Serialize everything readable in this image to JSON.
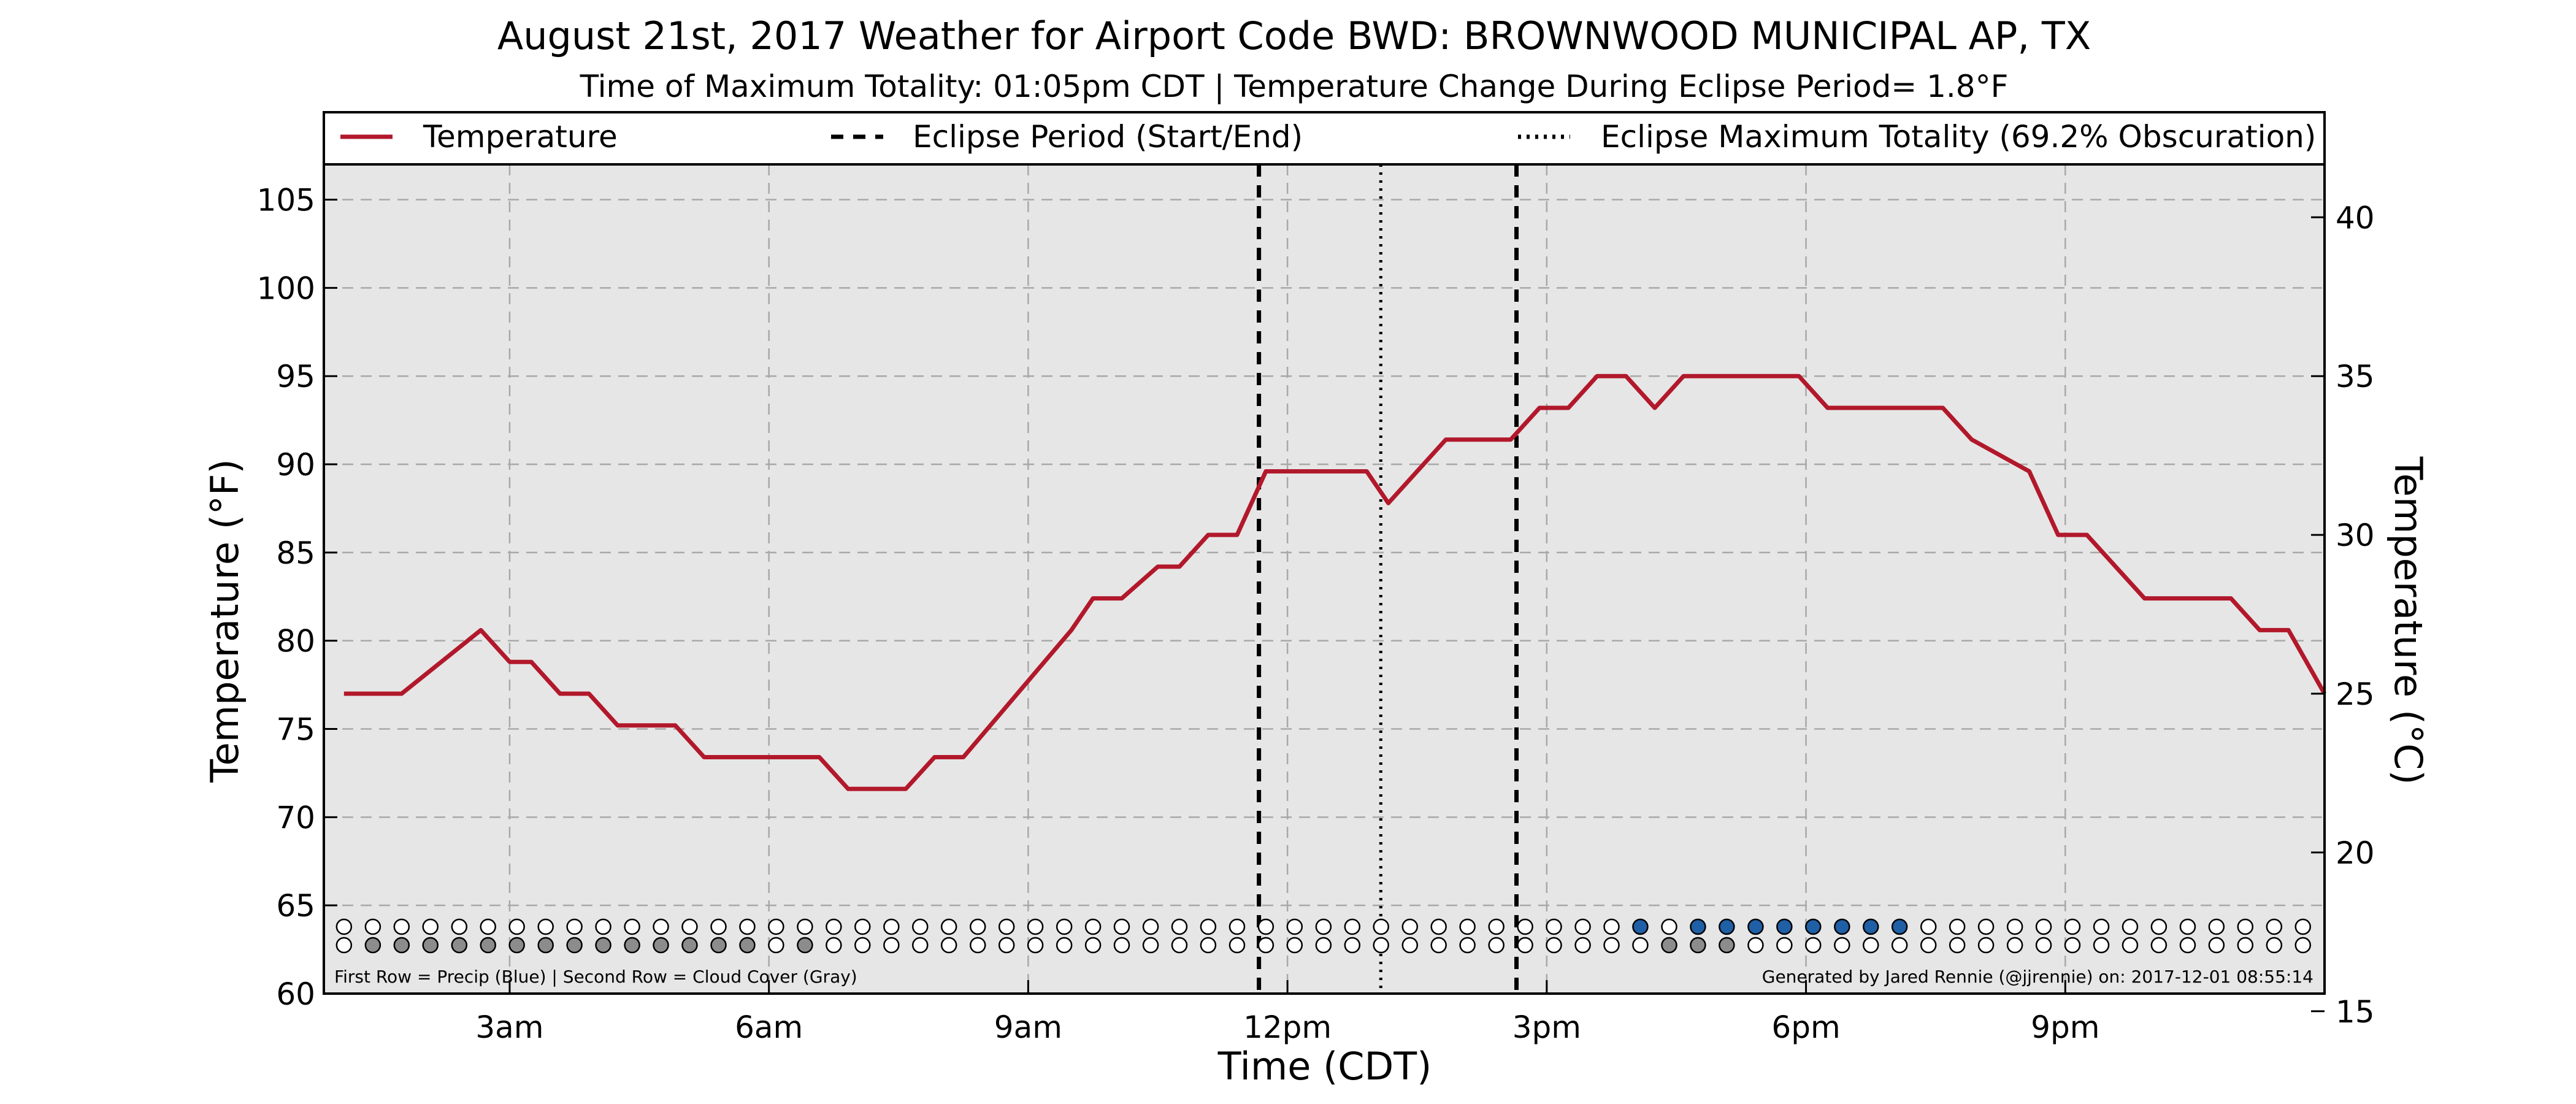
{
  "chart_data": {
    "type": "line",
    "title": "August 21st, 2017 Weather for Airport Code BWD: BROWNWOOD MUNICIPAL AP, TX",
    "subtitle": "Time of Maximum Totality: 01:05pm CDT | Temperature Change During Eclipse Period= 1.8°F",
    "xlabel": "Time (CDT)",
    "ylabel": "Temperature (°F)",
    "ylabel_right": "Temperature (°C)",
    "x_unit": "hours after midnight CDT",
    "xlim": [
      0.85,
      24.0
    ],
    "ylim": [
      60,
      107
    ],
    "ylim_right_c": [
      15.56,
      41.67
    ],
    "x_ticks": [
      {
        "value": 3,
        "label": "3am"
      },
      {
        "value": 6,
        "label": "6am"
      },
      {
        "value": 9,
        "label": "9am"
      },
      {
        "value": 12,
        "label": "12pm"
      },
      {
        "value": 15,
        "label": "3pm"
      },
      {
        "value": 18,
        "label": "6pm"
      },
      {
        "value": 21,
        "label": "9pm"
      }
    ],
    "y_ticks": [
      60,
      65,
      70,
      75,
      80,
      85,
      90,
      95,
      100,
      105
    ],
    "y_ticks_right": [
      15,
      20,
      25,
      30,
      35,
      40
    ],
    "grid": true,
    "legend_position": "top",
    "series": [
      {
        "name": "Temperature",
        "color": "#b2182b",
        "x": [
          1.083,
          1.75,
          2.667,
          3.0,
          3.25,
          3.583,
          3.917,
          4.25,
          4.583,
          4.917,
          5.25,
          5.583,
          6.583,
          6.917,
          7.583,
          7.917,
          8.25,
          9.5,
          9.75,
          10.083,
          10.5,
          10.75,
          11.083,
          11.417,
          11.75,
          12.0,
          12.25,
          12.583,
          12.917,
          13.167,
          13.5,
          13.833,
          14.167,
          14.583,
          14.917,
          15.25,
          15.583,
          15.917,
          16.25,
          16.583,
          16.917,
          17.25,
          17.917,
          18.25,
          18.583,
          18.917,
          19.25,
          19.583,
          19.917,
          20.583,
          20.917,
          21.25,
          21.583,
          21.917,
          22.917,
          23.25,
          23.583,
          24.0
        ],
        "values": [
          77.0,
          77.0,
          80.6,
          78.8,
          78.8,
          77.0,
          77.0,
          75.2,
          75.2,
          75.2,
          73.4,
          73.4,
          73.4,
          71.6,
          71.6,
          73.4,
          73.4,
          80.6,
          82.4,
          82.4,
          84.2,
          84.2,
          86.0,
          86.0,
          89.6,
          89.6,
          89.6,
          89.6,
          89.6,
          87.8,
          89.6,
          91.4,
          91.4,
          91.4,
          93.2,
          93.2,
          95.0,
          95.0,
          93.2,
          95.0,
          95.0,
          95.0,
          95.0,
          93.2,
          93.2,
          93.2,
          93.2,
          93.2,
          91.4,
          89.6,
          86.0,
          86.0,
          84.2,
          82.4,
          82.4,
          80.6,
          80.6,
          77.0
        ]
      }
    ],
    "eclipse_period": {
      "name": "Eclipse Period (Start/End)",
      "start": 11.67,
      "end": 14.65
    },
    "eclipse_max_totality": {
      "name": "Eclipse Maximum Totality (69.2% Obscuration)",
      "time": 13.08
    },
    "observation_times": [
      1.083,
      1.417,
      1.75,
      2.083,
      2.417,
      2.75,
      3.083,
      3.417,
      3.75,
      4.083,
      4.417,
      4.75,
      5.083,
      5.417,
      5.75,
      6.083,
      6.417,
      6.75,
      7.083,
      7.417,
      7.75,
      8.083,
      8.417,
      8.75,
      9.083,
      9.417,
      9.75,
      10.083,
      10.417,
      10.75,
      11.083,
      11.417,
      11.75,
      12.083,
      12.417,
      12.75,
      13.083,
      13.417,
      13.75,
      14.083,
      14.417,
      14.75,
      15.083,
      15.417,
      15.75,
      16.083,
      16.417,
      16.75,
      17.083,
      17.417,
      17.75,
      18.083,
      18.417,
      18.75,
      19.083,
      19.417,
      19.75,
      20.083,
      20.417,
      20.75,
      21.083,
      21.417,
      21.75,
      22.083,
      22.417,
      22.75,
      23.083,
      23.417,
      23.75
    ],
    "precip_observed": [
      0,
      0,
      0,
      0,
      0,
      0,
      0,
      0,
      0,
      0,
      0,
      0,
      0,
      0,
      0,
      0,
      0,
      0,
      0,
      0,
      0,
      0,
      0,
      0,
      0,
      0,
      0,
      0,
      0,
      0,
      0,
      0,
      0,
      0,
      0,
      0,
      0,
      0,
      0,
      0,
      0,
      0,
      0,
      0,
      0,
      1,
      0,
      1,
      1,
      1,
      1,
      1,
      1,
      1,
      1,
      0,
      0,
      0,
      0,
      0,
      0,
      0,
      0,
      0,
      0,
      0,
      0,
      0,
      0
    ],
    "cloud_cover_observed": [
      0,
      1,
      1,
      1,
      1,
      1,
      1,
      1,
      1,
      1,
      1,
      1,
      1,
      1,
      1,
      0,
      1,
      0,
      0,
      0,
      0,
      0,
      0,
      0,
      0,
      0,
      0,
      0,
      0,
      0,
      0,
      0,
      0,
      0,
      0,
      0,
      0,
      0,
      0,
      0,
      0,
      0,
      0,
      0,
      0,
      0,
      1,
      1,
      1,
      0,
      0,
      0,
      0,
      0,
      0,
      0,
      0,
      0,
      0,
      0,
      0,
      0,
      0,
      0,
      0,
      0,
      0,
      0,
      0
    ],
    "precip_color": "#1f5fa6",
    "cloud_color": "#8c8c8c",
    "note_left": "First Row = Precip (Blue) | Second Row = Cloud Cover (Gray)",
    "note_right": "Generated by Jared Rennie (@jjrennie) on: 2017-12-01 08:55:14"
  }
}
